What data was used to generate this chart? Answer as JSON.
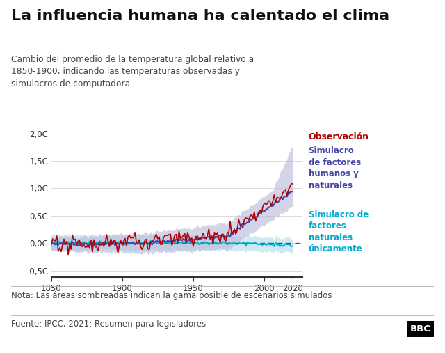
{
  "title": "La influencia humana ha calentado el clima",
  "subtitle_line1": "Cambio del promedio de la temperatura global relativo a",
  "subtitle_line2": "1850-1900, indicando las temperaturas observadas y",
  "subtitle_line3": "simulacros de computadora",
  "note": "Nota: Las áreas sombreadas indican la gama posible de escenarios simulados",
  "source": "Fuente: IPCC, 2021: Resumen para legisladores",
  "bbc_logo": "BBC",
  "xlim": [
    1850,
    2027
  ],
  "ylim": [
    -0.62,
    2.05
  ],
  "yticks": [
    -0.5,
    0.0,
    0.5,
    1.0,
    1.5,
    2.0
  ],
  "ytick_labels": [
    "-0,5C",
    "0,0C",
    "0,5C",
    "1,0C",
    "1,5C",
    "2,0C"
  ],
  "xticks": [
    1850,
    1900,
    1950,
    2000,
    2020
  ],
  "legend_obs": "Observación",
  "legend_human_natural": "Simulacro\nde factores\nhumanos y\nnaturales",
  "legend_natural": "Simulacro de\nfactores\nnaturales\núnicamente",
  "obs_color": "#b30000",
  "human_natural_line_color": "#4444aa",
  "human_natural_band_color": "#b8b8d8",
  "natural_line_color": "#00aacc",
  "natural_band_color": "#a8d8e8",
  "bg_color": "#ffffff",
  "title_color": "#111111",
  "subtitle_color": "#444444",
  "note_color": "#444444",
  "source_color": "#444444",
  "grid_color": "#cccccc",
  "zero_line_color": "#555555",
  "bottom_spine_color": "#333333"
}
